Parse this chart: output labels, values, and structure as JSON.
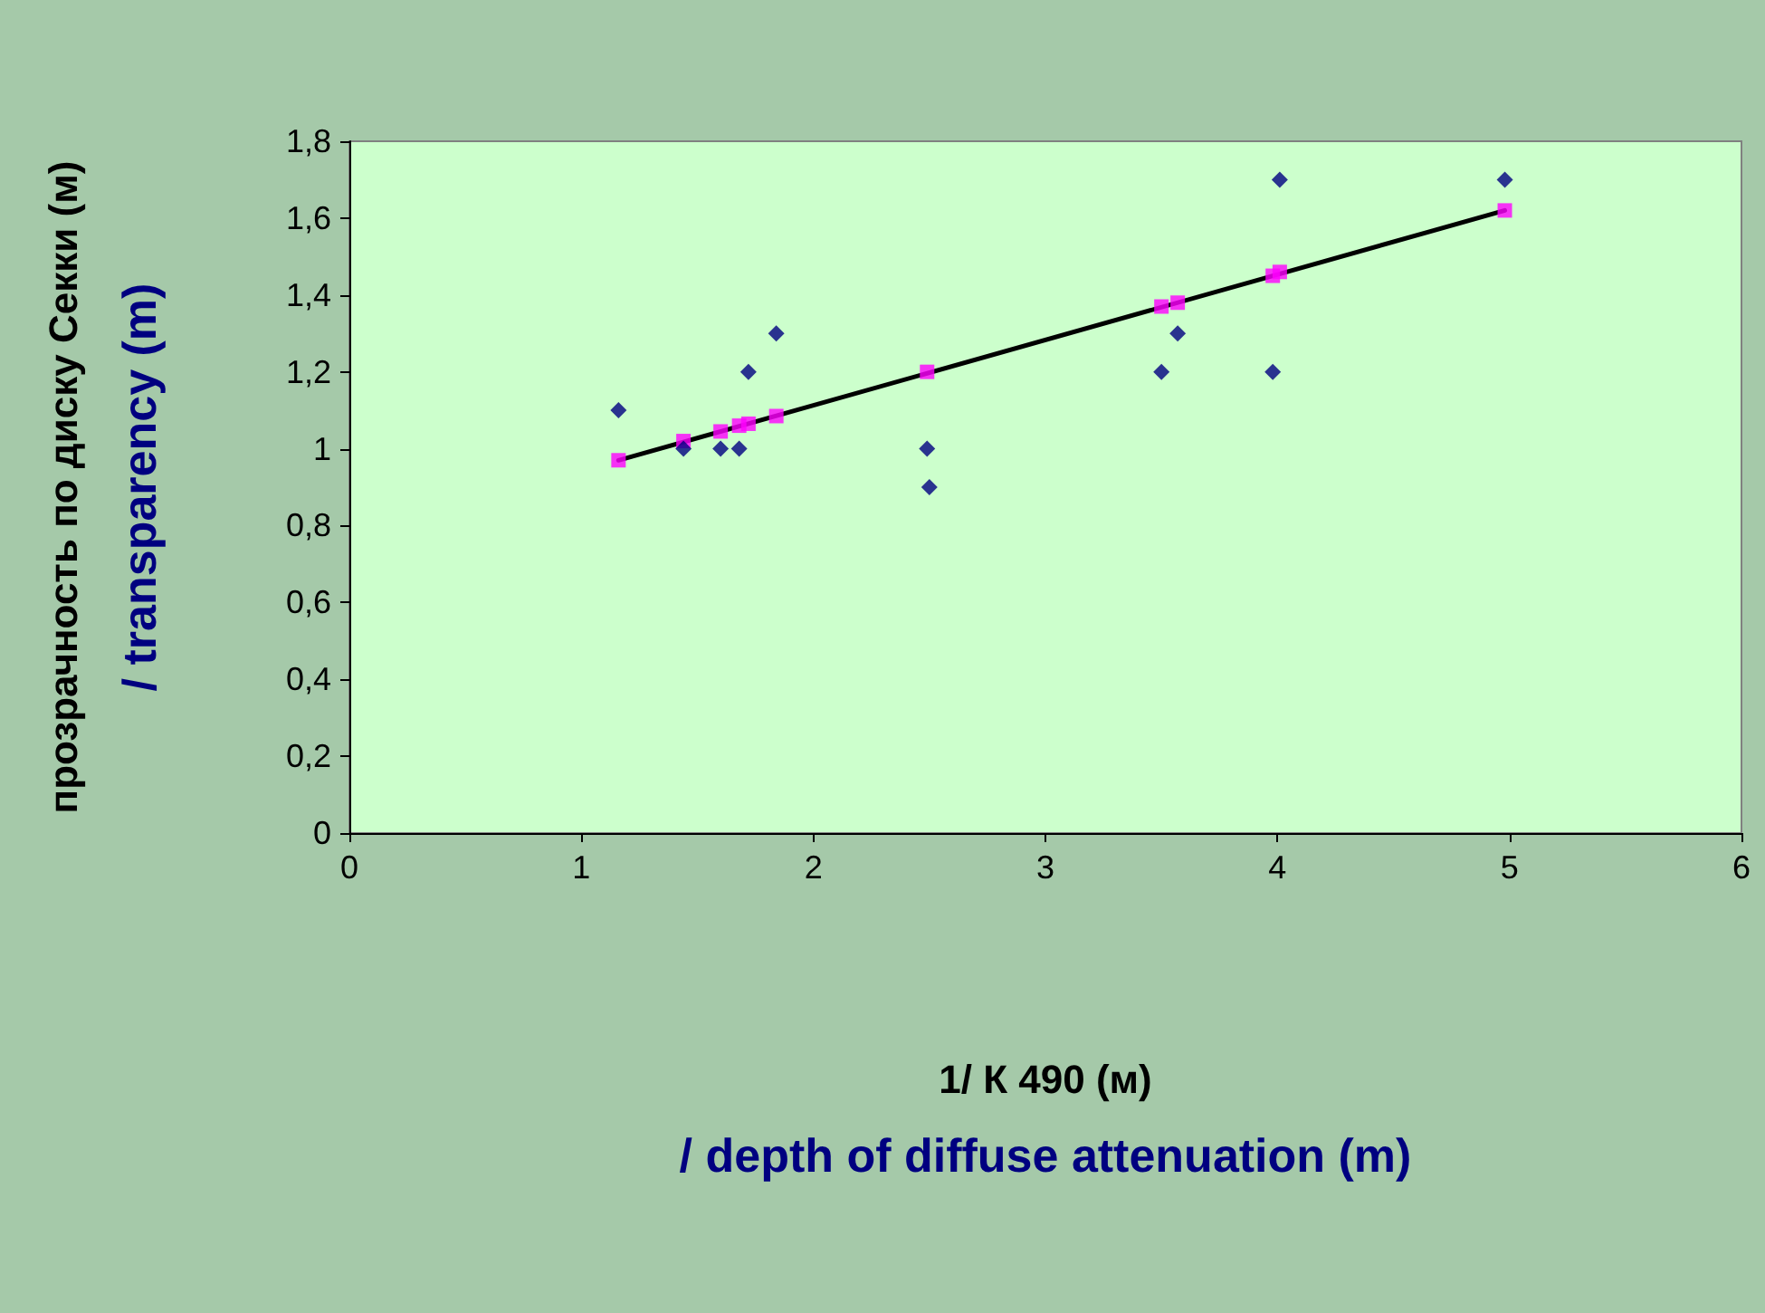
{
  "chart_data": {
    "type": "scatter",
    "xlabel": "1/ К 490 (м)\n/ depth of diffuse attenuation (m)",
    "ylabel": "прозрачность по диску Секки (м)\n/ transparency (m)",
    "xlim": [
      0,
      6
    ],
    "xticks": [
      0,
      1,
      2,
      3,
      4,
      5,
      6
    ],
    "ylim": [
      0,
      1.8
    ],
    "yticks": [
      0,
      {
        "value": 0.2,
        "label": "0,2"
      },
      {
        "value": 0.4,
        "label": "0,4"
      },
      {
        "value": 0.6,
        "label": "0,6"
      },
      {
        "value": 0.8,
        "label": "0,8"
      },
      1,
      {
        "value": 1.2,
        "label": "1,2"
      },
      {
        "value": 1.4,
        "label": "1,4"
      },
      {
        "value": 1.6,
        "label": "1,6"
      },
      {
        "value": 1.8,
        "label": "1,8"
      }
    ],
    "grid": false,
    "series": [
      {
        "marker": "diamond",
        "color": "#000080",
        "x": [
          1.16,
          1.44,
          1.6,
          1.68,
          1.72,
          1.84,
          2.49,
          2.5,
          3.5,
          3.57,
          3.98,
          4.01,
          4.98
        ],
        "values": [
          1.1,
          1.0,
          1.0,
          1.0,
          1.2,
          1.3,
          1.0,
          0.9,
          1.2,
          1.3,
          1.2,
          1.7,
          1.7
        ]
      },
      {
        "marker": "square",
        "color": "#ff00ff",
        "x": [
          1.16,
          1.44,
          1.6,
          1.68,
          1.72,
          1.84,
          2.49,
          3.5,
          3.57,
          3.98,
          4.01,
          4.98
        ],
        "values": [
          0.97,
          1.02,
          1.045,
          1.06,
          1.065,
          1.085,
          1.2,
          1.37,
          1.38,
          1.45,
          1.46,
          1.62
        ]
      },
      {
        "type": "line",
        "marker": "none",
        "color": "#000000",
        "x": [
          1.16,
          4.98
        ],
        "values": [
          0.97,
          1.62
        ]
      }
    ]
  }
}
